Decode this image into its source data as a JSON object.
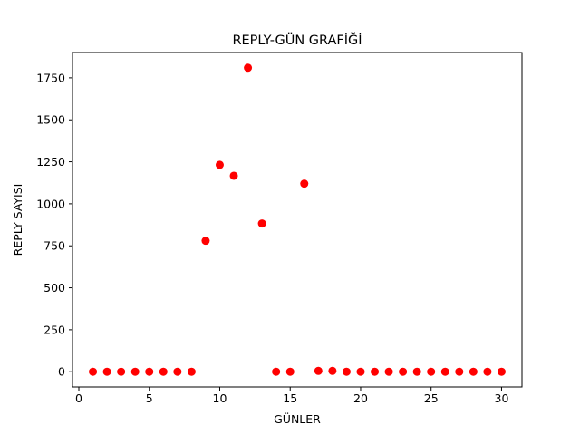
{
  "chart_data": {
    "type": "scatter",
    "title": "REPLY-GÜN GRAFİĞİ",
    "xlabel": "GÜNLER",
    "ylabel": "REPLY SAYISI",
    "xlim": [
      -0.45,
      31.45
    ],
    "ylim": [
      -90.5,
      1900.5
    ],
    "xticks": [
      0,
      5,
      10,
      15,
      20,
      25,
      30
    ],
    "yticks": [
      0,
      250,
      500,
      750,
      1000,
      1250,
      1500,
      1750
    ],
    "marker_color": "#ff0000",
    "grid": false,
    "x": [
      1,
      2,
      3,
      4,
      5,
      6,
      7,
      8,
      9,
      10,
      11,
      12,
      13,
      14,
      15,
      16,
      17,
      18,
      19,
      20,
      21,
      22,
      23,
      24,
      25,
      26,
      27,
      28,
      29,
      30
    ],
    "y": [
      0,
      0,
      0,
      0,
      0,
      0,
      0,
      0,
      780,
      1232,
      1167,
      1810,
      883,
      0,
      0,
      1120,
      5,
      5,
      0,
      0,
      0,
      0,
      0,
      0,
      0,
      0,
      0,
      0,
      0,
      0
    ]
  }
}
